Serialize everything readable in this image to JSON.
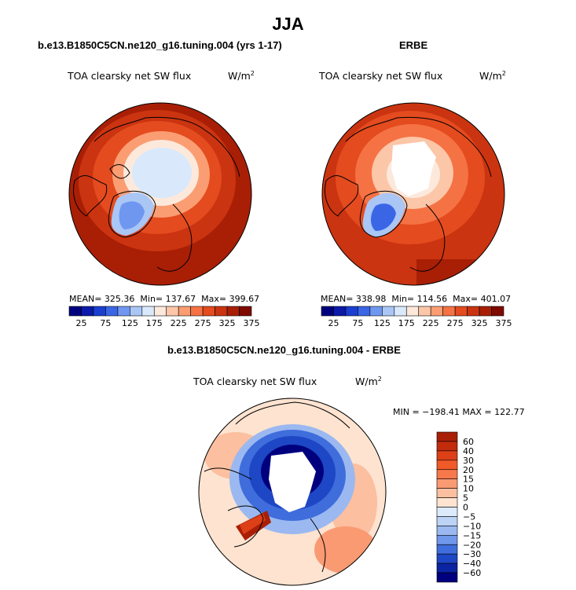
{
  "main_title": "JJA",
  "panels": [
    {
      "title": "b.e13.B1850C5CN.ne120_g16.tuning.004 (yrs 1-17)",
      "field": "TOA clearsky net SW flux",
      "units": "W/m",
      "units_sup": "2",
      "stats": {
        "mean": "MEAN= 325.36",
        "min": "Min= 137.67",
        "max": "Max= 399.67"
      }
    },
    {
      "title": "ERBE",
      "field": "TOA clearsky net SW flux",
      "units": "W/m",
      "units_sup": "2",
      "stats": {
        "mean": "MEAN= 338.98",
        "min": "Min= 114.56",
        "max": "Max= 401.07"
      }
    },
    {
      "title": "b.e13.B1850C5CN.ne120_g16.tuning.004 - ERBE",
      "field": "TOA clearsky net SW flux",
      "units": "W/m",
      "units_sup": "2",
      "stats": {
        "minmax": "MIN = −198.41  MAX = 122.77"
      }
    }
  ],
  "colorbar_top": {
    "labels": [
      "25",
      "75",
      "125",
      "175",
      "225",
      "275",
      "325",
      "375"
    ],
    "colors": [
      "#00007f",
      "#0b1aa8",
      "#1a3fd0",
      "#3a66e6",
      "#6f97f0",
      "#a9c6f5",
      "#d9e9fb",
      "#fde9dc",
      "#fcc6a8",
      "#fb9d72",
      "#f57244",
      "#e44b1f",
      "#cb3410",
      "#a81f06",
      "#7f0a00"
    ]
  },
  "colorbar_diff": {
    "labels": [
      "60",
      "40",
      "30",
      "20",
      "15",
      "10",
      "5",
      "0",
      "−5",
      "−10",
      "−15",
      "−20",
      "−30",
      "−40",
      "−60"
    ],
    "colors": [
      "#a81f06",
      "#c22b0c",
      "#dd3f17",
      "#f05a28",
      "#f7784a",
      "#fa9a73",
      "#fcbf9f",
      "#fde3d0",
      "#ddeafb",
      "#bcd3f6",
      "#9bb9f0",
      "#6f97ea",
      "#3f6ddc",
      "#1d47c4",
      "#0a24a3",
      "#00007f"
    ]
  },
  "chart_data": [
    {
      "type": "heatmap",
      "title": "b.e13.B1850C5CN.ne120_g16.tuning.004 (yrs 1-17)",
      "field": "TOA clearsky net SW flux",
      "units": "W/m2",
      "projection": "north polar stereographic",
      "stats": {
        "mean": 325.36,
        "min": 137.67,
        "max": 399.67
      },
      "levels": [
        25,
        50,
        75,
        100,
        125,
        150,
        175,
        200,
        225,
        250,
        275,
        300,
        325,
        350,
        375
      ]
    },
    {
      "type": "heatmap",
      "title": "ERBE",
      "field": "TOA clearsky net SW flux",
      "units": "W/m2",
      "projection": "north polar stereographic",
      "stats": {
        "mean": 338.98,
        "min": 114.56,
        "max": 401.07
      },
      "levels": [
        25,
        50,
        75,
        100,
        125,
        150,
        175,
        200,
        225,
        250,
        275,
        300,
        325,
        350,
        375
      ]
    },
    {
      "type": "heatmap",
      "title": "b.e13.B1850C5CN.ne120_g16.tuning.004 - ERBE",
      "field": "TOA clearsky net SW flux",
      "units": "W/m2",
      "projection": "north polar stereographic",
      "stats": {
        "min": -198.41,
        "max": 122.77
      },
      "levels": [
        -60,
        -40,
        -30,
        -20,
        -15,
        -10,
        -5,
        0,
        5,
        10,
        15,
        20,
        30,
        40,
        60
      ]
    }
  ]
}
